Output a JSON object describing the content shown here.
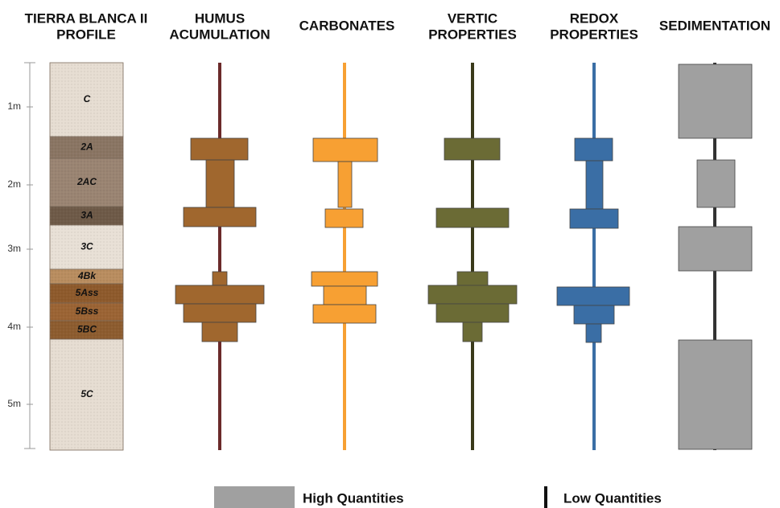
{
  "headers": [
    {
      "lines": [
        "TIERRA BLANCA II",
        "PROFILE"
      ]
    },
    {
      "lines": [
        "HUMUS",
        "ACUMULATION"
      ]
    },
    {
      "lines": [
        "CARBONATES"
      ]
    },
    {
      "lines": [
        "VERTIC",
        "PROPERTIES"
      ]
    },
    {
      "lines": [
        "REDOX",
        "PROPERTIES"
      ]
    },
    {
      "lines": [
        "SEDIMENTATION"
      ]
    }
  ],
  "depth_labels": [
    "1m",
    "2m",
    "3m",
    "4m",
    "5m"
  ],
  "horizons": [
    "C",
    "2A",
    "2AC",
    "3A",
    "3C",
    "4Bk",
    "5Ass",
    "5Bss",
    "5BC",
    "5C"
  ],
  "legend": {
    "high": "High Quantities",
    "low": "Low Quantities"
  }
}
